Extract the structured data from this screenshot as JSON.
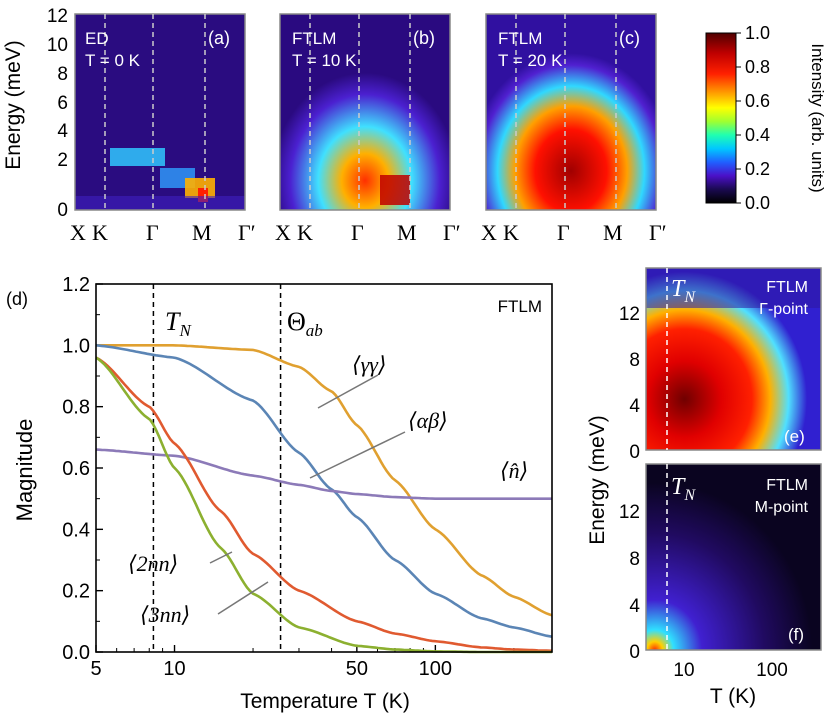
{
  "colorbar": {
    "label": "Intensity (arb. units)",
    "ticks": [
      "1.0",
      "0.8",
      "0.6",
      "0.4",
      "0.2",
      "0.0"
    ],
    "tick_values": [
      1.0,
      0.8,
      0.6,
      0.4,
      0.2,
      0.0
    ],
    "range": [
      0,
      1
    ]
  },
  "top_panels": {
    "ylabel": "Energy (meV)",
    "yticks": [
      "12",
      "10",
      "8",
      "6",
      "4",
      "2",
      "0"
    ],
    "ytick_values": [
      12,
      10,
      8,
      6,
      4,
      2,
      0
    ],
    "xticks": [
      "X",
      "K",
      "Γ",
      "M",
      "Γ′"
    ],
    "panels": [
      {
        "id": "(a)",
        "method": "ED",
        "temp": "T = 0 K"
      },
      {
        "id": "(b)",
        "method": "FTLM",
        "temp": "T = 10 K"
      },
      {
        "id": "(c)",
        "method": "FTLM",
        "temp": "T = 20 K"
      }
    ]
  },
  "chart_data": [
    {
      "type": "line",
      "panel": "(d)",
      "method_label": "FTLM",
      "xlabel": "Temperature T (K)",
      "ylabel": "Magnitude",
      "xscale": "log",
      "xlim": [
        5,
        280
      ],
      "ylim": [
        0,
        1.2
      ],
      "xticks": [
        "5",
        "10",
        "50",
        "100"
      ],
      "xtick_values": [
        5,
        10,
        50,
        100
      ],
      "yticks": [
        "0.0",
        "0.2",
        "0.4",
        "0.6",
        "0.8",
        "1.0",
        "1.2"
      ],
      "ytick_values": [
        0,
        0.2,
        0.4,
        0.6,
        0.8,
        1.0,
        1.2
      ],
      "vlines": [
        {
          "label": "T_N",
          "x": 8.3
        },
        {
          "label": "Θ_ab",
          "x": 25.5
        }
      ],
      "series": [
        {
          "name": "⟨γγ⟩",
          "color": "#e0a030",
          "x": [
            5,
            10,
            20,
            30,
            40,
            50,
            70,
            100,
            150,
            200,
            280
          ],
          "values": [
            1.0,
            1.0,
            0.985,
            0.93,
            0.85,
            0.74,
            0.56,
            0.4,
            0.25,
            0.18,
            0.12
          ]
        },
        {
          "name": "⟨αβ⟩",
          "color": "#5b85b5",
          "x": [
            5,
            10,
            20,
            30,
            40,
            50,
            70,
            100,
            150,
            200,
            280
          ],
          "values": [
            1.0,
            0.96,
            0.82,
            0.65,
            0.53,
            0.44,
            0.3,
            0.19,
            0.11,
            0.08,
            0.05
          ]
        },
        {
          "name": "⟨n̂⟩",
          "color": "#8c7ab8",
          "x": [
            5,
            10,
            20,
            30,
            40,
            50,
            70,
            100,
            150,
            200,
            280
          ],
          "values": [
            0.66,
            0.64,
            0.575,
            0.545,
            0.525,
            0.515,
            0.505,
            0.5,
            0.5,
            0.5,
            0.5
          ]
        },
        {
          "name": "⟨2nn⟩",
          "color": "#e05a30",
          "x": [
            5,
            8,
            10,
            15,
            20,
            30,
            50,
            70,
            100,
            150,
            200,
            280
          ],
          "values": [
            0.96,
            0.8,
            0.68,
            0.46,
            0.32,
            0.2,
            0.1,
            0.06,
            0.035,
            0.015,
            0.008,
            0.004
          ]
        },
        {
          "name": "⟨3nn⟩",
          "color": "#8cb030",
          "x": [
            5,
            8,
            10,
            15,
            20,
            30,
            50,
            70,
            100,
            150,
            200,
            280
          ],
          "values": [
            0.96,
            0.76,
            0.6,
            0.34,
            0.19,
            0.08,
            0.02,
            0.008,
            0.002,
            0.0,
            0.0,
            0.0
          ]
        }
      ]
    },
    {
      "type": "heatmap",
      "panel": "(e)",
      "method_label": "FTLM",
      "point_label": "Γ-point",
      "xlim": [
        4,
        300
      ],
      "ylim": [
        0,
        15
      ],
      "yticks": [
        "12",
        "8",
        "4",
        "0"
      ],
      "vline_label": "T_N"
    },
    {
      "type": "heatmap",
      "panel": "(f)",
      "method_label": "FTLM",
      "point_label": "M-point",
      "xlabel": "T (K)",
      "xticks": [
        "10",
        "100"
      ],
      "xlim": [
        4,
        300
      ],
      "ylim": [
        0,
        15
      ],
      "yticks": [
        "12",
        "8",
        "4",
        "0"
      ],
      "vline_label": "T_N"
    }
  ],
  "right_ylabel": "Energy (meV)"
}
